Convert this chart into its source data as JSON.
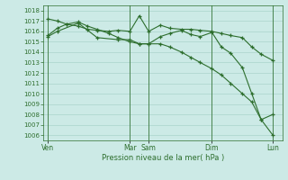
{
  "background_color": "#cceae6",
  "grid_color": "#aad4cc",
  "line_color": "#2d6e2d",
  "ylabel_ticks": [
    1006,
    1007,
    1008,
    1009,
    1010,
    1011,
    1012,
    1013,
    1014,
    1015,
    1016,
    1017,
    1018
  ],
  "xlabel": "Pression niveau de la mer( hPa )",
  "day_labels": [
    "Ven",
    "Mar",
    "Sam",
    "Dim",
    "Lun"
  ],
  "day_positions": [
    0.0,
    0.35,
    0.43,
    0.7,
    0.96
  ],
  "series1_x": [
    0.0,
    0.04,
    0.08,
    0.13,
    0.17,
    0.21,
    0.26,
    0.3,
    0.35,
    0.39,
    0.43,
    0.48,
    0.52,
    0.57,
    0.61,
    0.65,
    0.7,
    0.74,
    0.78,
    0.83,
    0.87,
    0.91,
    0.96
  ],
  "series1_y": [
    1017.2,
    1017.0,
    1016.7,
    1016.5,
    1016.2,
    1016.1,
    1016.0,
    1016.1,
    1016.0,
    1017.5,
    1016.0,
    1016.6,
    1016.3,
    1016.2,
    1016.2,
    1016.1,
    1016.0,
    1015.8,
    1015.6,
    1015.4,
    1014.5,
    1013.8,
    1013.2
  ],
  "series2_x": [
    0.0,
    0.04,
    0.13,
    0.21,
    0.3,
    0.35,
    0.39,
    0.43,
    0.48,
    0.52,
    0.57,
    0.61,
    0.65,
    0.7,
    0.74,
    0.78,
    0.83,
    0.87,
    0.91,
    0.96
  ],
  "series2_y": [
    1015.5,
    1016.0,
    1016.8,
    1015.4,
    1015.2,
    1015.2,
    1014.8,
    1014.8,
    1015.5,
    1015.8,
    1016.1,
    1015.7,
    1015.5,
    1015.9,
    1014.5,
    1013.9,
    1012.5,
    1010.0,
    1007.5,
    1006.0
  ],
  "series3_x": [
    0.0,
    0.04,
    0.08,
    0.13,
    0.17,
    0.21,
    0.26,
    0.3,
    0.35,
    0.39,
    0.43,
    0.48,
    0.52,
    0.57,
    0.61,
    0.65,
    0.7,
    0.74,
    0.78,
    0.83,
    0.87,
    0.91,
    0.96
  ],
  "series3_y": [
    1015.6,
    1016.3,
    1016.7,
    1016.9,
    1016.5,
    1016.2,
    1015.8,
    1015.4,
    1015.0,
    1014.8,
    1014.8,
    1014.8,
    1014.5,
    1014.0,
    1013.5,
    1013.0,
    1012.4,
    1011.8,
    1011.0,
    1010.0,
    1009.2,
    1007.5,
    1008.0
  ],
  "ylim": [
    1005.5,
    1018.5
  ],
  "xlim": [
    -0.02,
    1.0
  ],
  "figsize": [
    3.2,
    2.0
  ],
  "dpi": 100
}
